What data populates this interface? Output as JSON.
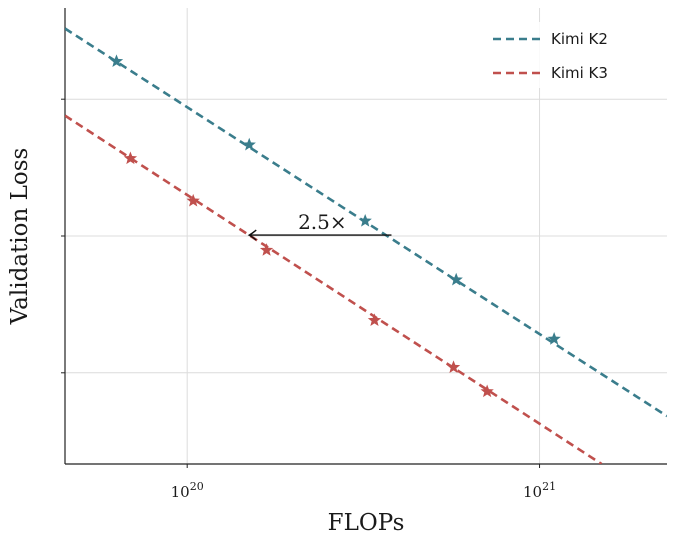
{
  "chart_data": {
    "type": "line",
    "xlabel": "FLOPs",
    "ylabel": "Validation Loss",
    "x_scale": "log",
    "xlim": [
      4.5e+19,
      2.3e+21
    ],
    "ylim": [
      0,
      1
    ],
    "x_ticks": [
      {
        "value": 1e+20,
        "base": "10",
        "exp": "20"
      },
      {
        "value": 1e+21,
        "base": "10",
        "exp": "21"
      }
    ],
    "y_ticks": [
      0.2,
      0.5,
      0.8
    ],
    "y_tick_labels_shown": false,
    "grid": true,
    "legend_position": "top-right",
    "series": [
      {
        "name": "Kimi K2",
        "color": "#3a7d8c",
        "style": "dashed",
        "fit_line": [
          [
            4.5e+19,
            0.955
          ],
          [
            2.3e+21,
            0.105
          ]
        ],
        "points": [
          [
            6.3e+19,
            0.883
          ],
          [
            1.5e+20,
            0.7
          ],
          [
            3.2e+20,
            0.533
          ],
          [
            5.8e+20,
            0.404
          ],
          [
            1.1e+21,
            0.274
          ]
        ]
      },
      {
        "name": "Kimi K3",
        "color": "#c0504d",
        "style": "dashed",
        "fit_line": [
          [
            4.5e+19,
            0.764
          ],
          [
            1.5e+21,
            0.0
          ]
        ],
        "points": [
          [
            6.9e+19,
            0.67
          ],
          [
            1.04e+20,
            0.577
          ],
          [
            1.68e+20,
            0.469
          ],
          [
            3.4e+20,
            0.315
          ],
          [
            5.7e+20,
            0.212
          ],
          [
            7.1e+20,
            0.159
          ]
        ]
      }
    ],
    "annotations": [
      {
        "text": "2.5×",
        "arrow_from": [
          3.8e+20,
          0.502
        ],
        "arrow_to": [
          1.5e+20,
          0.502
        ]
      }
    ]
  }
}
